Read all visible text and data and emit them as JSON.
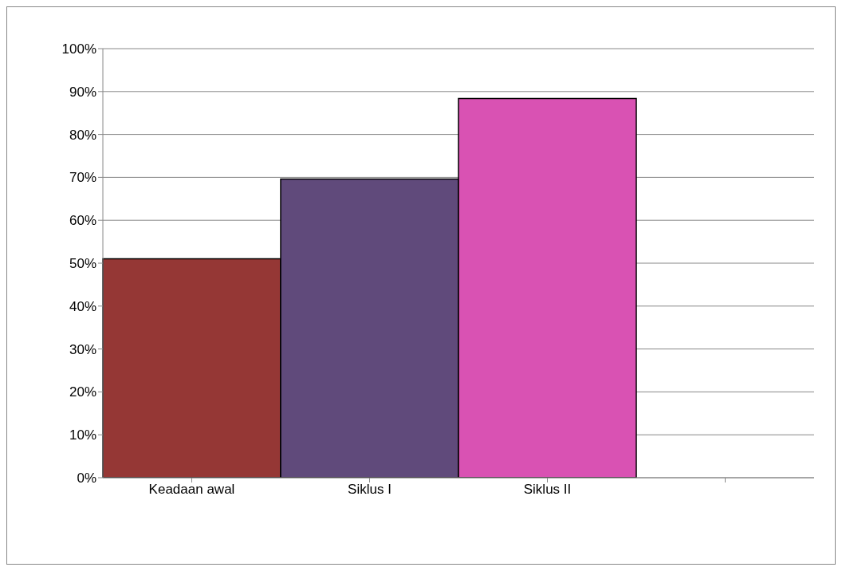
{
  "chart_data": {
    "type": "bar",
    "categories": [
      "Keadaan awal",
      "Siklus I",
      "Siklus II",
      null
    ],
    "values": [
      51,
      69.6,
      88.4,
      null
    ],
    "colors": [
      "#953735",
      "#604a7b",
      "#d952b3",
      "#000000"
    ],
    "ylim": [
      0,
      100
    ],
    "yticks": [
      {
        "value": 0,
        "label": "0%"
      },
      {
        "value": 10,
        "label": "10%"
      },
      {
        "value": 20,
        "label": "20%"
      },
      {
        "value": 30,
        "label": "30%"
      },
      {
        "value": 40,
        "label": "40%"
      },
      {
        "value": 50,
        "label": "50%"
      },
      {
        "value": 60,
        "label": "60%"
      },
      {
        "value": 70,
        "label": "70%"
      },
      {
        "value": 80,
        "label": "80%"
      },
      {
        "value": 90,
        "label": "90%"
      },
      {
        "value": 100,
        "label": "100%"
      }
    ],
    "grid": "y",
    "legend": false
  }
}
